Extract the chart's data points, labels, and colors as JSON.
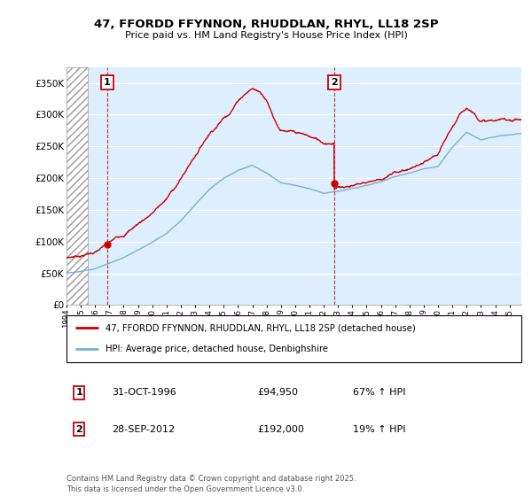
{
  "title_line1": "47, FFORDD FFYNNON, RHUDDLAN, RHYL, LL18 2SP",
  "title_line2": "Price paid vs. HM Land Registry's House Price Index (HPI)",
  "xlim_start": 1994.0,
  "xlim_end": 2025.83,
  "ylim_min": 0,
  "ylim_max": 375000,
  "yticks": [
    0,
    50000,
    100000,
    150000,
    200000,
    250000,
    300000,
    350000
  ],
  "ytick_labels": [
    "£0",
    "£50K",
    "£100K",
    "£150K",
    "£200K",
    "£250K",
    "£300K",
    "£350K"
  ],
  "sale1_date": 1996.83,
  "sale1_price": 94950,
  "sale2_date": 2012.74,
  "sale2_price": 192000,
  "legend_line1": "47, FFORDD FFYNNON, RHUDDLAN, RHYL, LL18 2SP (detached house)",
  "legend_line2": "HPI: Average price, detached house, Denbighshire",
  "annotation1_label": "1",
  "annotation1_date_str": "31-OCT-1996",
  "annotation1_price_str": "£94,950",
  "annotation1_hpi_str": "67% ↑ HPI",
  "annotation2_label": "2",
  "annotation2_date_str": "28-SEP-2012",
  "annotation2_price_str": "£192,000",
  "annotation2_hpi_str": "19% ↑ HPI",
  "footer": "Contains HM Land Registry data © Crown copyright and database right 2025.\nThis data is licensed under the Open Government Licence v3.0.",
  "hpi_color": "#7bafd4",
  "price_color": "#cc0000",
  "bg_color": "#ddeeff",
  "hatch_end": 1995.5
}
